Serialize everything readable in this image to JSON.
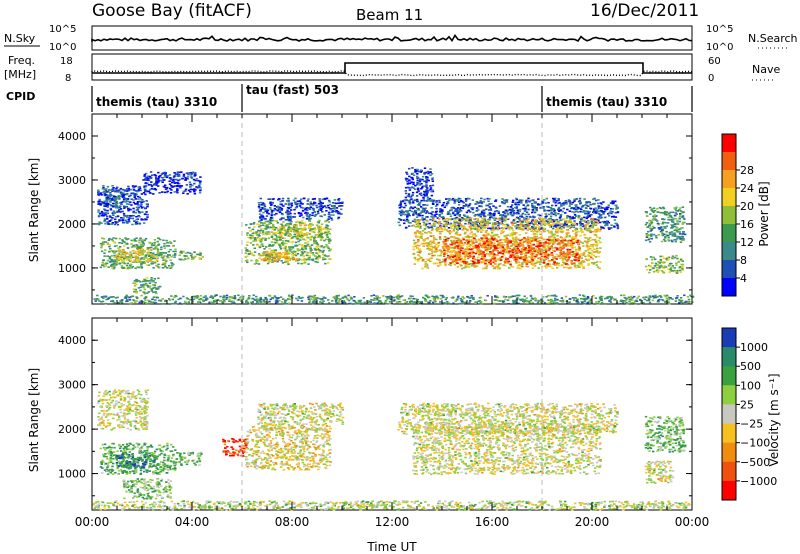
{
  "header": {
    "station": "Goose Bay (fitACF)",
    "beam": "Beam 11",
    "date": "16/Dec/2011"
  },
  "strip_labels": {
    "nsky": "N.Sky",
    "nsky_ticks": [
      "10^5",
      "10^0"
    ],
    "nsearch": "N.Search",
    "nsearch_ticks": [
      "10^5",
      "10^0"
    ],
    "freq": "Freq.",
    "freq_unit": "[MHz]",
    "freq_ticks": [
      "18",
      "8"
    ],
    "nave": "Nave",
    "nave_ticks": [
      "60",
      "0"
    ],
    "cpid": "CPID"
  },
  "cpid_segments": [
    {
      "label": "themis (tau) 3310",
      "start_hour": 0
    },
    {
      "label": "tau (fast) 503",
      "start_hour": 6
    },
    {
      "label": "themis (tau) 3310",
      "start_hour": 18
    }
  ],
  "colors": {
    "power": [
      "#0000ff",
      "#1f4fb4",
      "#3a8a8a",
      "#3c9a50",
      "#8fbf3a",
      "#f0d020",
      "#f5a020",
      "#f06010",
      "#ff0000"
    ],
    "velocity": [
      "#1a3db5",
      "#2a8a6a",
      "#3aa040",
      "#8cd040",
      "#c8c8c0",
      "#f5c020",
      "#f08c10",
      "#f05010",
      "#ff0000"
    ]
  },
  "chart_data": [
    {
      "type": "heatmap",
      "quantity": "Power",
      "ylabel": "Slant Range [km]",
      "colorbar_label": "Power [dB]",
      "colorbar_ticks": [
        4,
        8,
        12,
        16,
        20,
        24,
        28
      ],
      "ylim": [
        180,
        4500
      ],
      "yticks": [
        1000,
        2000,
        3000,
        4000
      ],
      "xlim": [
        0,
        24
      ],
      "regions": [
        {
          "t": [
            0.2,
            2.2
          ],
          "r": [
            2000,
            2900
          ],
          "level": 0.15
        },
        {
          "t": [
            0.4,
            1.4
          ],
          "r": [
            2400,
            2800
          ],
          "level": 0.2
        },
        {
          "t": [
            0.3,
            3.3
          ],
          "r": [
            1000,
            1700
          ],
          "level": 0.4
        },
        {
          "t": [
            0.9,
            2.6
          ],
          "r": [
            1150,
            1450
          ],
          "level": 0.62
        },
        {
          "t": [
            1.6,
            2.7
          ],
          "r": [
            430,
            800
          ],
          "level": 0.4
        },
        {
          "t": [
            2.0,
            4.3
          ],
          "r": [
            2700,
            3200
          ],
          "level": 0.1
        },
        {
          "t": [
            3.3,
            4.4
          ],
          "r": [
            1200,
            1400
          ],
          "level": 0.45
        },
        {
          "t": [
            6.1,
            9.5
          ],
          "r": [
            1100,
            2100
          ],
          "level": 0.45
        },
        {
          "t": [
            6.6,
            8.2
          ],
          "r": [
            1150,
            1400
          ],
          "level": 0.65
        },
        {
          "t": [
            7.2,
            9.2
          ],
          "r": [
            1700,
            2000
          ],
          "level": 0.55
        },
        {
          "t": [
            6.6,
            10.0
          ],
          "r": [
            2100,
            2600
          ],
          "level": 0.15
        },
        {
          "t": [
            12.2,
            21.0
          ],
          "r": [
            1900,
            2600
          ],
          "level": 0.18
        },
        {
          "t": [
            12.8,
            20.3
          ],
          "r": [
            1000,
            2150
          ],
          "level": 0.62
        },
        {
          "t": [
            14.0,
            19.5
          ],
          "r": [
            1100,
            1700
          ],
          "level": 0.82
        },
        {
          "t": [
            12.5,
            13.6
          ],
          "r": [
            2600,
            3300
          ],
          "level": 0.12
        },
        {
          "t": [
            22.1,
            23.7
          ],
          "r": [
            1600,
            2400
          ],
          "level": 0.35
        },
        {
          "t": [
            22.1,
            23.6
          ],
          "r": [
            900,
            1300
          ],
          "level": 0.45
        },
        {
          "t": [
            0.0,
            24.0
          ],
          "r": [
            200,
            400
          ],
          "level": 0.35
        }
      ]
    },
    {
      "type": "heatmap",
      "quantity": "Velocity",
      "ylabel": "Slant Range [km]",
      "xlabel": "Time UT",
      "colorbar_label": "Velocity [m s⁻¹]",
      "colorbar_ticks": [
        1000,
        500,
        100,
        25,
        -25,
        -100,
        -500,
        -1000
      ],
      "ylim": [
        180,
        4500
      ],
      "yticks": [
        1000,
        2000,
        3000,
        4000
      ],
      "xlim": [
        0,
        24
      ],
      "xticks": [
        "00:00",
        "04:00",
        "08:00",
        "12:00",
        "16:00",
        "20:00",
        "00:00"
      ],
      "regions": [
        {
          "t": [
            0.2,
            2.2
          ],
          "r": [
            2000,
            2900
          ],
          "level": 0.5
        },
        {
          "t": [
            0.3,
            3.3
          ],
          "r": [
            1000,
            1700
          ],
          "level": 0.3
        },
        {
          "t": [
            0.9,
            2.6
          ],
          "r": [
            1150,
            1450
          ],
          "level": 0.15
        },
        {
          "t": [
            1.2,
            3.2
          ],
          "r": [
            450,
            900
          ],
          "level": 0.38
        },
        {
          "t": [
            3.3,
            4.4
          ],
          "r": [
            1200,
            1500
          ],
          "level": 0.35
        },
        {
          "t": [
            5.2,
            6.2
          ],
          "r": [
            1400,
            1800
          ],
          "level": 0.85
        },
        {
          "t": [
            6.1,
            9.5
          ],
          "r": [
            1100,
            2100
          ],
          "level": 0.55
        },
        {
          "t": [
            6.6,
            10.0
          ],
          "r": [
            2100,
            2600
          ],
          "level": 0.5
        },
        {
          "t": [
            12.2,
            21.0
          ],
          "r": [
            1900,
            2600
          ],
          "level": 0.5
        },
        {
          "t": [
            12.8,
            20.3
          ],
          "r": [
            1000,
            2150
          ],
          "level": 0.5
        },
        {
          "t": [
            22.1,
            23.7
          ],
          "r": [
            1500,
            2300
          ],
          "level": 0.35
        },
        {
          "t": [
            22.1,
            23.2
          ],
          "r": [
            800,
            1300
          ],
          "level": 0.5
        },
        {
          "t": [
            0.0,
            24.0
          ],
          "r": [
            200,
            400
          ],
          "level": 0.45
        }
      ]
    }
  ]
}
